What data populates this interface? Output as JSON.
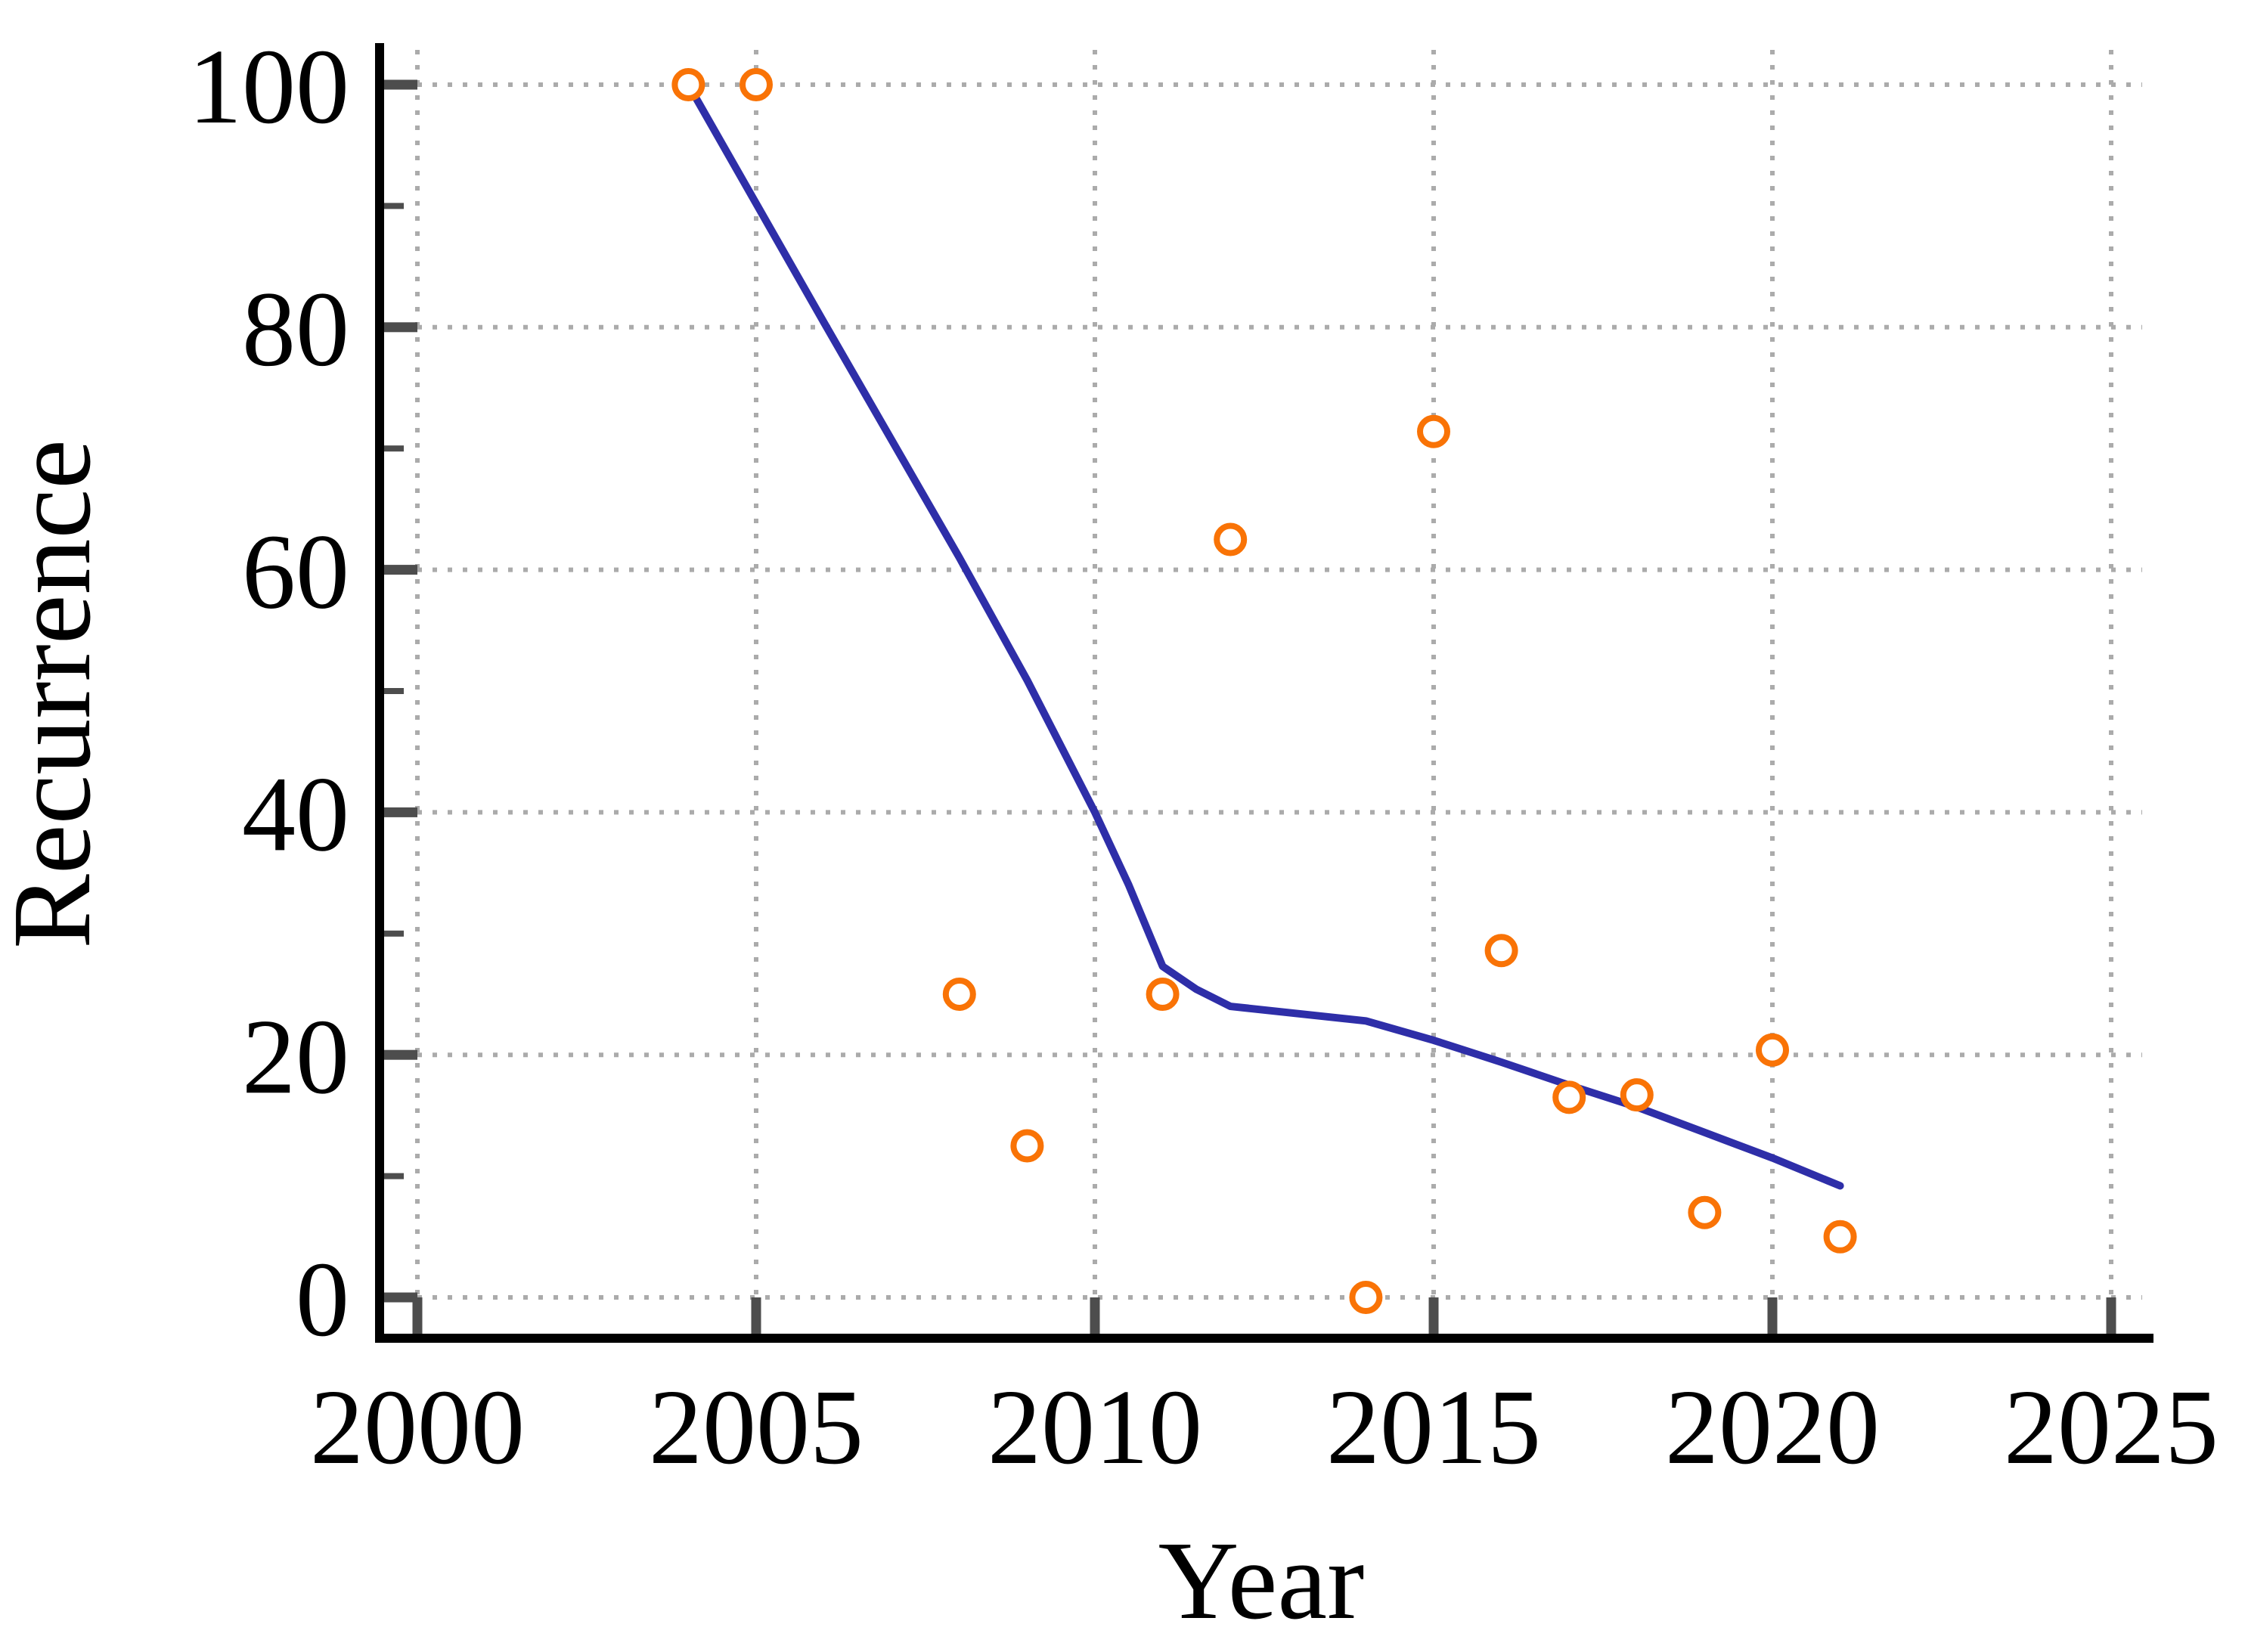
{
  "chart_data": {
    "type": "scatter",
    "title": "",
    "xlabel": "Year",
    "ylabel": "Recurrence",
    "x_ticks": [
      2000,
      2005,
      2010,
      2015,
      2020,
      2025
    ],
    "y_ticks": [
      0,
      20,
      40,
      60,
      80,
      100
    ],
    "y_minor_ticks": [
      10,
      30,
      50,
      70,
      90
    ],
    "xlim": [
      1999.4,
      2025.5
    ],
    "ylim": [
      -3.4,
      103
    ],
    "grid": "dotted-major-both-axes",
    "legend": "none",
    "series": [
      {
        "name": "observed-recurrence",
        "type": "scatter",
        "marker": "open-circle",
        "color": "#F97306",
        "points": [
          [
            2004,
            100
          ],
          [
            2005,
            100
          ],
          [
            2008,
            25
          ],
          [
            2009,
            12.5
          ],
          [
            2011,
            25
          ],
          [
            2012,
            62.5
          ],
          [
            2014,
            0
          ],
          [
            2015,
            71.4
          ],
          [
            2016,
            28.6
          ],
          [
            2017,
            16.5
          ],
          [
            2018,
            16.7
          ],
          [
            2019,
            7
          ],
          [
            2020,
            20.4
          ],
          [
            2021,
            5
          ]
        ]
      },
      {
        "name": "trend-line",
        "type": "line",
        "color": "#2E2EA8",
        "points": [
          [
            2004,
            100
          ],
          [
            2006,
            80.4
          ],
          [
            2008,
            61
          ],
          [
            2009,
            50.9
          ],
          [
            2010,
            40
          ],
          [
            2010.5,
            34
          ],
          [
            2011,
            27.3
          ],
          [
            2011.5,
            25.4
          ],
          [
            2012,
            24
          ],
          [
            2013,
            23.4
          ],
          [
            2014,
            22.8
          ],
          [
            2015,
            21.2
          ],
          [
            2016,
            19.4
          ],
          [
            2017,
            17.5
          ],
          [
            2018,
            15.7
          ],
          [
            2019,
            13.6
          ],
          [
            2020,
            11.5
          ],
          [
            2021,
            9.2
          ]
        ]
      }
    ]
  },
  "axes": {
    "x_label": "Year",
    "y_label": "Recurrence",
    "x_tick_labels": [
      "2000",
      "2005",
      "2010",
      "2015",
      "2020",
      "2025"
    ],
    "y_tick_labels": [
      "0",
      "20",
      "40",
      "60",
      "80",
      "100"
    ]
  },
  "colors": {
    "line": "#2E2EA8",
    "marker": "#F97306",
    "grid": "#ABABAB",
    "tick": "#4D4D4D",
    "spine": "#000000",
    "background": "#FFFFFF",
    "text": "#000000"
  }
}
